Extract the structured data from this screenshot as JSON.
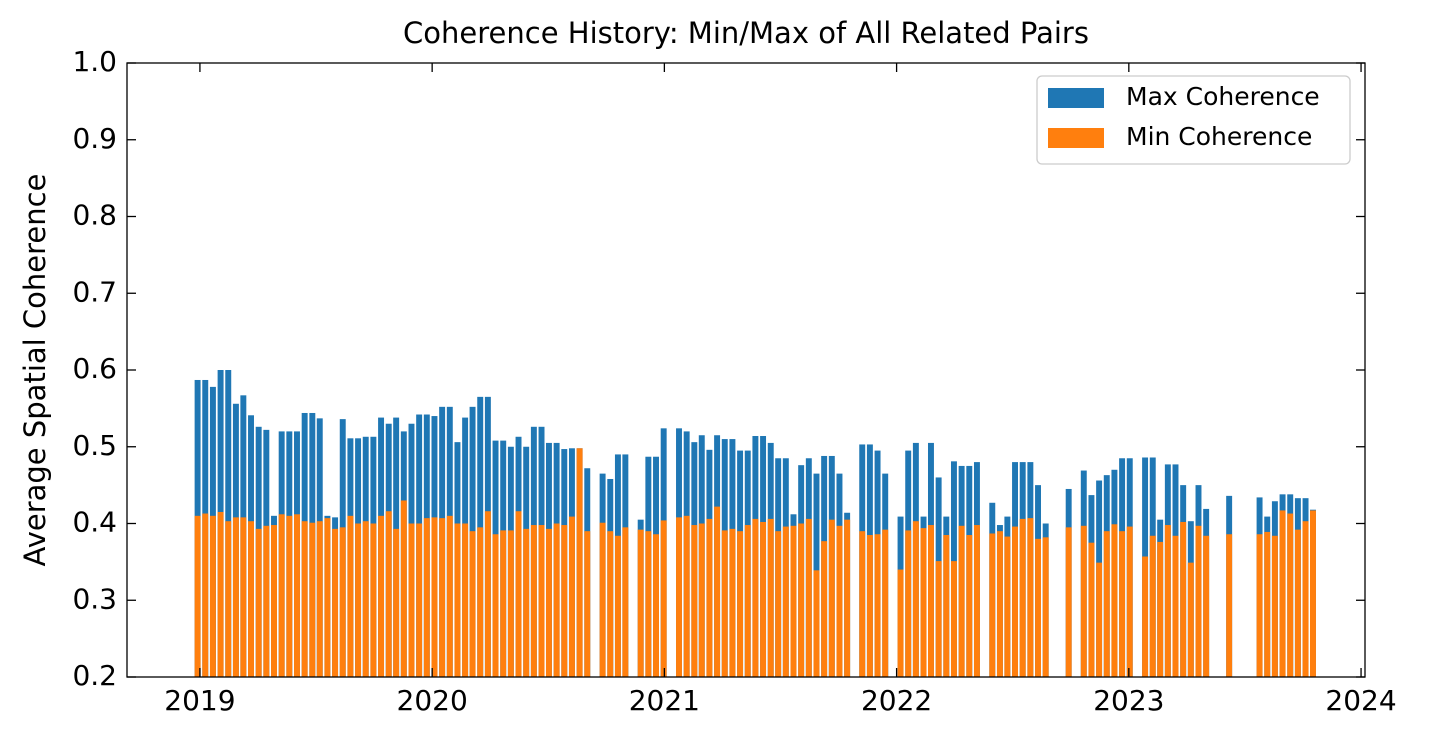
{
  "chart_data": {
    "type": "bar",
    "title": "Coherence History: Min/Max of All Related Pairs",
    "y_label": "Average Spatial Coherence",
    "legend": "upper right",
    "xlim": [
      2018.686,
      2024.017
    ],
    "xticks": [
      2019,
      2020,
      2021,
      2022,
      2023,
      2024
    ],
    "ylim": [
      0.2,
      1.0
    ],
    "yticks": [
      0.2,
      0.3,
      0.4,
      0.5,
      0.6,
      0.7,
      0.8,
      0.9,
      {
        "value": 1,
        "label": "1.0"
      }
    ],
    "x": [
      2018.99,
      2019.023,
      2019.056,
      2019.089,
      2019.122,
      2019.155,
      2019.187,
      2019.22,
      2019.253,
      2019.286,
      2019.319,
      2019.352,
      2019.385,
      2019.418,
      2019.451,
      2019.484,
      2019.516,
      2019.549,
      2019.582,
      2019.615,
      2019.648,
      2019.681,
      2019.714,
      2019.747,
      2019.78,
      2019.813,
      2019.845,
      2019.878,
      2019.911,
      2019.944,
      2019.977,
      2020.01,
      2020.043,
      2020.076,
      2020.109,
      2020.142,
      2020.174,
      2020.207,
      2020.24,
      2020.273,
      2020.306,
      2020.339,
      2020.372,
      2020.405,
      2020.438,
      2020.471,
      2020.503,
      2020.536,
      2020.569,
      2020.602,
      2020.635,
      2020.668,
      2020.734,
      2020.767,
      2020.8,
      2020.832,
      2020.898,
      2020.931,
      2020.964,
      2020.997,
      2021.063,
      2021.096,
      2021.129,
      2021.161,
      2021.194,
      2021.227,
      2021.26,
      2021.293,
      2021.326,
      2021.359,
      2021.392,
      2021.425,
      2021.458,
      2021.49,
      2021.523,
      2021.556,
      2021.589,
      2021.622,
      2021.655,
      2021.688,
      2021.721,
      2021.754,
      2021.787,
      2021.852,
      2021.885,
      2021.918,
      2021.951,
      2022.017,
      2022.05,
      2022.083,
      2022.116,
      2022.148,
      2022.181,
      2022.214,
      2022.247,
      2022.28,
      2022.313,
      2022.346,
      2022.412,
      2022.445,
      2022.477,
      2022.51,
      2022.543,
      2022.576,
      2022.609,
      2022.642,
      2022.741,
      2022.806,
      2022.839,
      2022.872,
      2022.905,
      2022.938,
      2022.971,
      2023.004,
      2023.07,
      2023.103,
      2023.135,
      2023.168,
      2023.201,
      2023.234,
      2023.267,
      2023.3,
      2023.333,
      2023.432,
      2023.563,
      2023.596,
      2023.629,
      2023.662,
      2023.695,
      2023.728,
      2023.761,
      2023.793
    ],
    "series": [
      {
        "name": "Max Coherence",
        "color": "#1f77b4",
        "values": [
          0.587,
          0.587,
          0.578,
          0.6,
          0.6,
          0.556,
          0.567,
          0.541,
          0.526,
          0.522,
          0.41,
          0.52,
          0.52,
          0.52,
          0.544,
          0.544,
          0.537,
          0.41,
          0.408,
          0.536,
          0.511,
          0.511,
          0.513,
          0.513,
          0.538,
          0.53,
          0.538,
          0.52,
          0.53,
          0.542,
          0.542,
          0.54,
          0.552,
          0.552,
          0.506,
          0.538,
          0.552,
          0.565,
          0.565,
          0.508,
          0.508,
          0.5,
          0.513,
          0.5,
          0.526,
          0.526,
          0.505,
          0.505,
          0.497,
          0.498,
          0.498,
          0.472,
          0.465,
          0.458,
          0.49,
          0.49,
          0.405,
          0.487,
          0.487,
          0.524,
          0.524,
          0.52,
          0.506,
          0.515,
          0.496,
          0.515,
          0.51,
          0.51,
          0.495,
          0.495,
          0.514,
          0.514,
          0.505,
          0.485,
          0.485,
          0.412,
          0.476,
          0.485,
          0.465,
          0.488,
          0.488,
          0.465,
          0.414,
          0.503,
          0.503,
          0.495,
          0.465,
          0.409,
          0.495,
          0.505,
          0.409,
          0.505,
          0.46,
          0.409,
          0.481,
          0.475,
          0.475,
          0.48,
          0.427,
          0.398,
          0.409,
          0.48,
          0.48,
          0.48,
          0.45,
          0.4,
          0.445,
          0.469,
          0.437,
          0.456,
          0.463,
          0.47,
          0.485,
          0.485,
          0.486,
          0.486,
          0.405,
          0.477,
          0.477,
          0.45,
          0.403,
          0.45,
          0.419,
          0.436,
          0.434,
          0.409,
          0.429,
          0.438,
          0.438,
          0.433,
          0.433,
          0.418
        ]
      },
      {
        "name": "Min Coherence",
        "color": "#ff7f0e",
        "values": [
          0.41,
          0.413,
          0.41,
          0.415,
          0.403,
          0.408,
          0.408,
          0.403,
          0.393,
          0.397,
          0.398,
          0.412,
          0.41,
          0.412,
          0.403,
          0.401,
          0.403,
          0.407,
          0.393,
          0.395,
          0.41,
          0.4,
          0.403,
          0.4,
          0.41,
          0.416,
          0.393,
          0.43,
          0.4,
          0.4,
          0.407,
          0.408,
          0.407,
          0.41,
          0.4,
          0.4,
          0.39,
          0.395,
          0.416,
          0.386,
          0.391,
          0.391,
          0.416,
          0.393,
          0.398,
          0.398,
          0.393,
          0.4,
          0.398,
          0.409,
          0.498,
          0.39,
          0.401,
          0.39,
          0.384,
          0.395,
          0.392,
          0.39,
          0.386,
          0.404,
          0.408,
          0.41,
          0.398,
          0.4,
          0.406,
          0.422,
          0.391,
          0.393,
          0.39,
          0.398,
          0.406,
          0.402,
          0.406,
          0.39,
          0.396,
          0.397,
          0.4,
          0.406,
          0.339,
          0.377,
          0.405,
          0.397,
          0.405,
          0.39,
          0.385,
          0.386,
          0.392,
          0.34,
          0.391,
          0.403,
          0.394,
          0.398,
          0.351,
          0.385,
          0.351,
          0.397,
          0.385,
          0.398,
          0.387,
          0.39,
          0.383,
          0.396,
          0.406,
          0.407,
          0.38,
          0.382,
          0.395,
          0.397,
          0.375,
          0.349,
          0.39,
          0.399,
          0.39,
          0.396,
          0.357,
          0.384,
          0.376,
          0.398,
          0.384,
          0.402,
          0.349,
          0.397,
          0.384,
          0.386,
          0.386,
          0.389,
          0.384,
          0.417,
          0.413,
          0.392,
          0.403,
          0.417
        ]
      }
    ]
  }
}
